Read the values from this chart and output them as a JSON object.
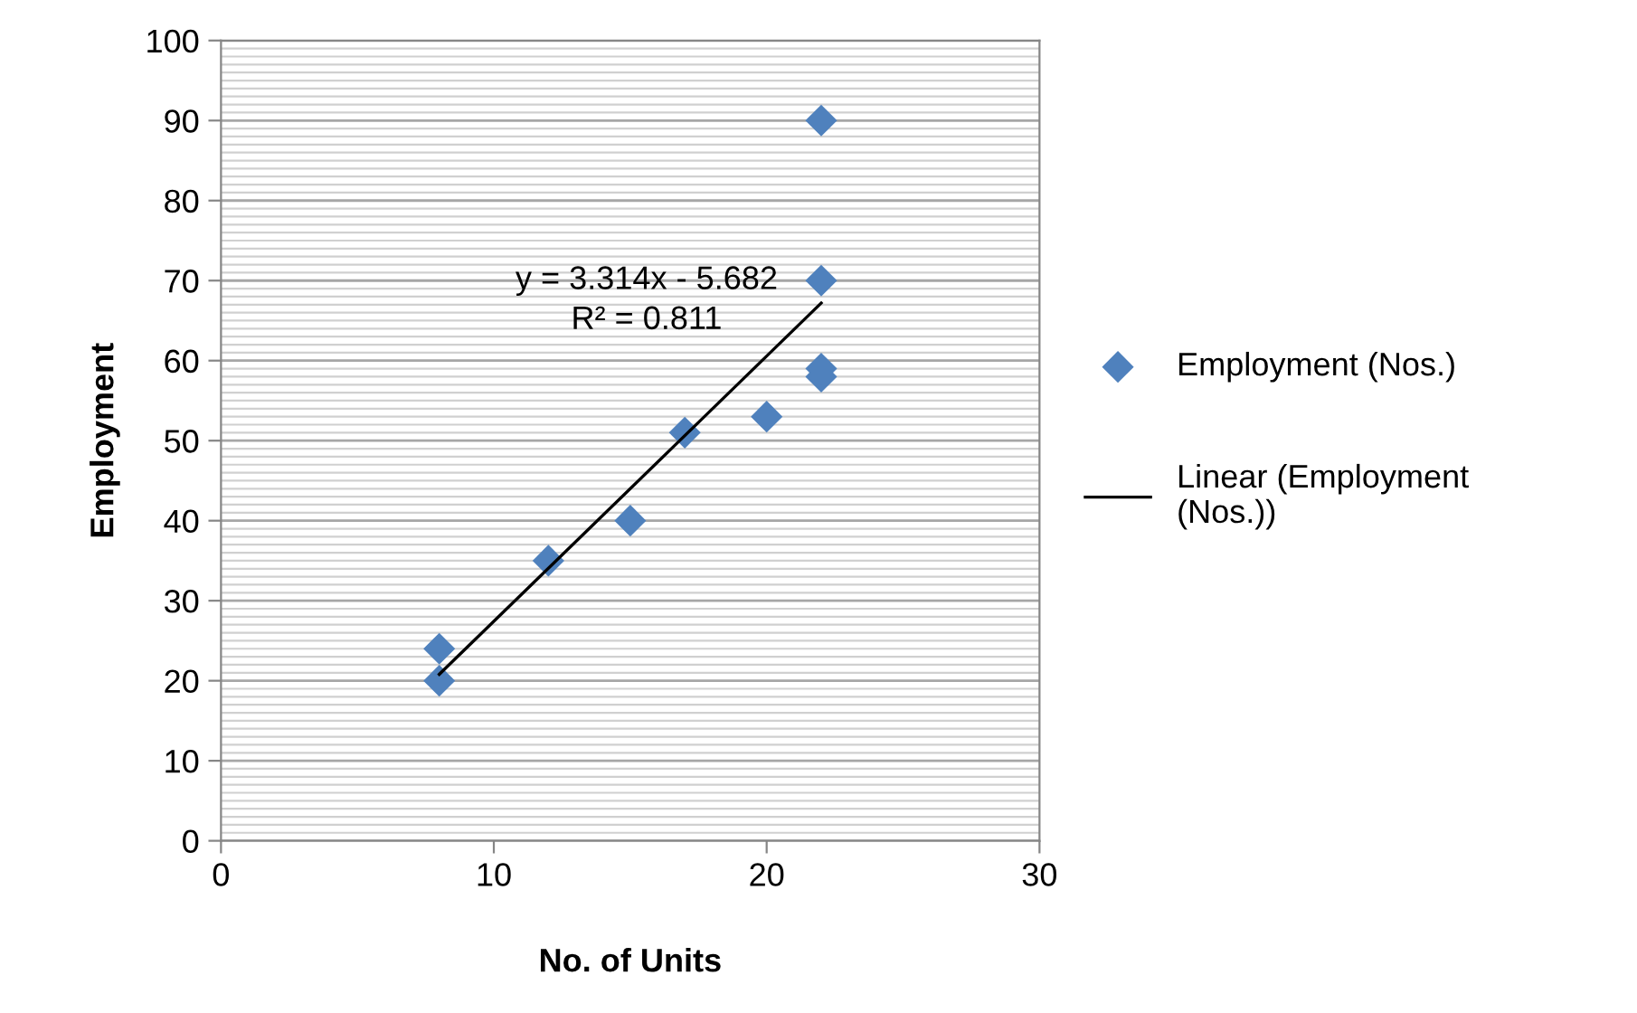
{
  "chart_data": {
    "type": "scatter",
    "xlabel": "No. of Units",
    "ylabel": "Employment",
    "series": [
      {
        "name": "Employment (Nos.)",
        "color": "#4f81bd",
        "marker": "diamond",
        "x": [
          8,
          8,
          12,
          15,
          17,
          20,
          22,
          22,
          22,
          22
        ],
        "values": [
          20,
          24,
          35,
          40,
          51,
          53,
          58,
          59,
          70,
          90
        ]
      },
      {
        "name": "Linear (Employment (Nos.))",
        "type": "line",
        "color": "#000000",
        "marker": "none",
        "line_style": "solid",
        "x": [
          8,
          22
        ],
        "values": [
          20.8,
          67.2
        ]
      }
    ],
    "annotations": [
      "y = 3.314x - 5.682",
      "R² = 0.811"
    ],
    "xlim": [
      0,
      30
    ],
    "xticks": [
      0,
      10,
      20,
      30
    ],
    "ylim": [
      0,
      100
    ],
    "yticks": [
      0,
      {
        "value": 1,
        "label": null
      },
      {
        "value": 2,
        "label": null
      },
      {
        "value": 3,
        "label": null
      },
      {
        "value": 4,
        "label": null
      },
      {
        "value": 5,
        "label": null
      },
      {
        "value": 6,
        "label": null
      },
      {
        "value": 7,
        "label": null
      },
      {
        "value": 8,
        "label": null
      },
      {
        "value": 9,
        "label": null
      },
      10,
      {
        "value": 11,
        "label": null
      },
      {
        "value": 12,
        "label": null
      },
      {
        "value": 13,
        "label": null
      },
      {
        "value": 14,
        "label": null
      },
      {
        "value": 15,
        "label": null
      },
      {
        "value": 16,
        "label": null
      },
      {
        "value": 17,
        "label": null
      },
      {
        "value": 18,
        "label": null
      },
      {
        "value": 19,
        "label": null
      },
      20,
      {
        "value": 21,
        "label": null
      },
      {
        "value": 22,
        "label": null
      },
      {
        "value": 23,
        "label": null
      },
      {
        "value": 24,
        "label": null
      },
      {
        "value": 25,
        "label": null
      },
      {
        "value": 26,
        "label": null
      },
      {
        "value": 27,
        "label": null
      },
      {
        "value": 28,
        "label": null
      },
      {
        "value": 29,
        "label": null
      },
      30,
      {
        "value": 31,
        "label": null
      },
      {
        "value": 32,
        "label": null
      },
      {
        "value": 33,
        "label": null
      },
      {
        "value": 34,
        "label": null
      },
      {
        "value": 35,
        "label": null
      },
      {
        "value": 36,
        "label": null
      },
      {
        "value": 37,
        "label": null
      },
      {
        "value": 38,
        "label": null
      },
      {
        "value": 39,
        "label": null
      },
      40,
      {
        "value": 41,
        "label": null
      },
      {
        "value": 42,
        "label": null
      },
      {
        "value": 43,
        "label": null
      },
      {
        "value": 44,
        "label": null
      },
      {
        "value": 45,
        "label": null
      },
      {
        "value": 46,
        "label": null
      },
      {
        "value": 47,
        "label": null
      },
      {
        "value": 48,
        "label": null
      },
      {
        "value": 49,
        "label": null
      },
      50,
      {
        "value": 51,
        "label": null
      },
      {
        "value": 52,
        "label": null
      },
      {
        "value": 53,
        "label": null
      },
      {
        "value": 54,
        "label": null
      },
      {
        "value": 55,
        "label": null
      },
      {
        "value": 56,
        "label": null
      },
      {
        "value": 57,
        "label": null
      },
      {
        "value": 58,
        "label": null
      },
      {
        "value": 59,
        "label": null
      },
      60,
      {
        "value": 61,
        "label": null
      },
      {
        "value": 62,
        "label": null
      },
      {
        "value": 63,
        "label": null
      },
      {
        "value": 64,
        "label": null
      },
      {
        "value": 65,
        "label": null
      },
      {
        "value": 66,
        "label": null
      },
      {
        "value": 67,
        "label": null
      },
      {
        "value": 68,
        "label": null
      },
      {
        "value": 69,
        "label": null
      },
      70,
      {
        "value": 71,
        "label": null
      },
      {
        "value": 72,
        "label": null
      },
      {
        "value": 73,
        "label": null
      },
      {
        "value": 74,
        "label": null
      },
      {
        "value": 75,
        "label": null
      },
      {
        "value": 76,
        "label": null
      },
      {
        "value": 77,
        "label": null
      },
      {
        "value": 78,
        "label": null
      },
      {
        "value": 79,
        "label": null
      },
      80,
      {
        "value": 81,
        "label": null
      },
      {
        "value": 82,
        "label": null
      },
      {
        "value": 83,
        "label": null
      },
      {
        "value": 84,
        "label": null
      },
      {
        "value": 85,
        "label": null
      },
      {
        "value": 86,
        "label": null
      },
      {
        "value": 87,
        "label": null
      },
      {
        "value": 88,
        "label": null
      },
      {
        "value": 89,
        "label": null
      },
      90,
      {
        "value": 91,
        "label": null
      },
      {
        "value": 92,
        "label": null
      },
      {
        "value": 93,
        "label": null
      },
      {
        "value": 94,
        "label": null
      },
      {
        "value": 95,
        "label": null
      },
      {
        "value": 96,
        "label": null
      },
      {
        "value": 97,
        "label": null
      },
      {
        "value": 98,
        "label": null
      },
      {
        "value": 99,
        "label": null
      },
      100
    ],
    "grid": "y",
    "legend": "right"
  }
}
